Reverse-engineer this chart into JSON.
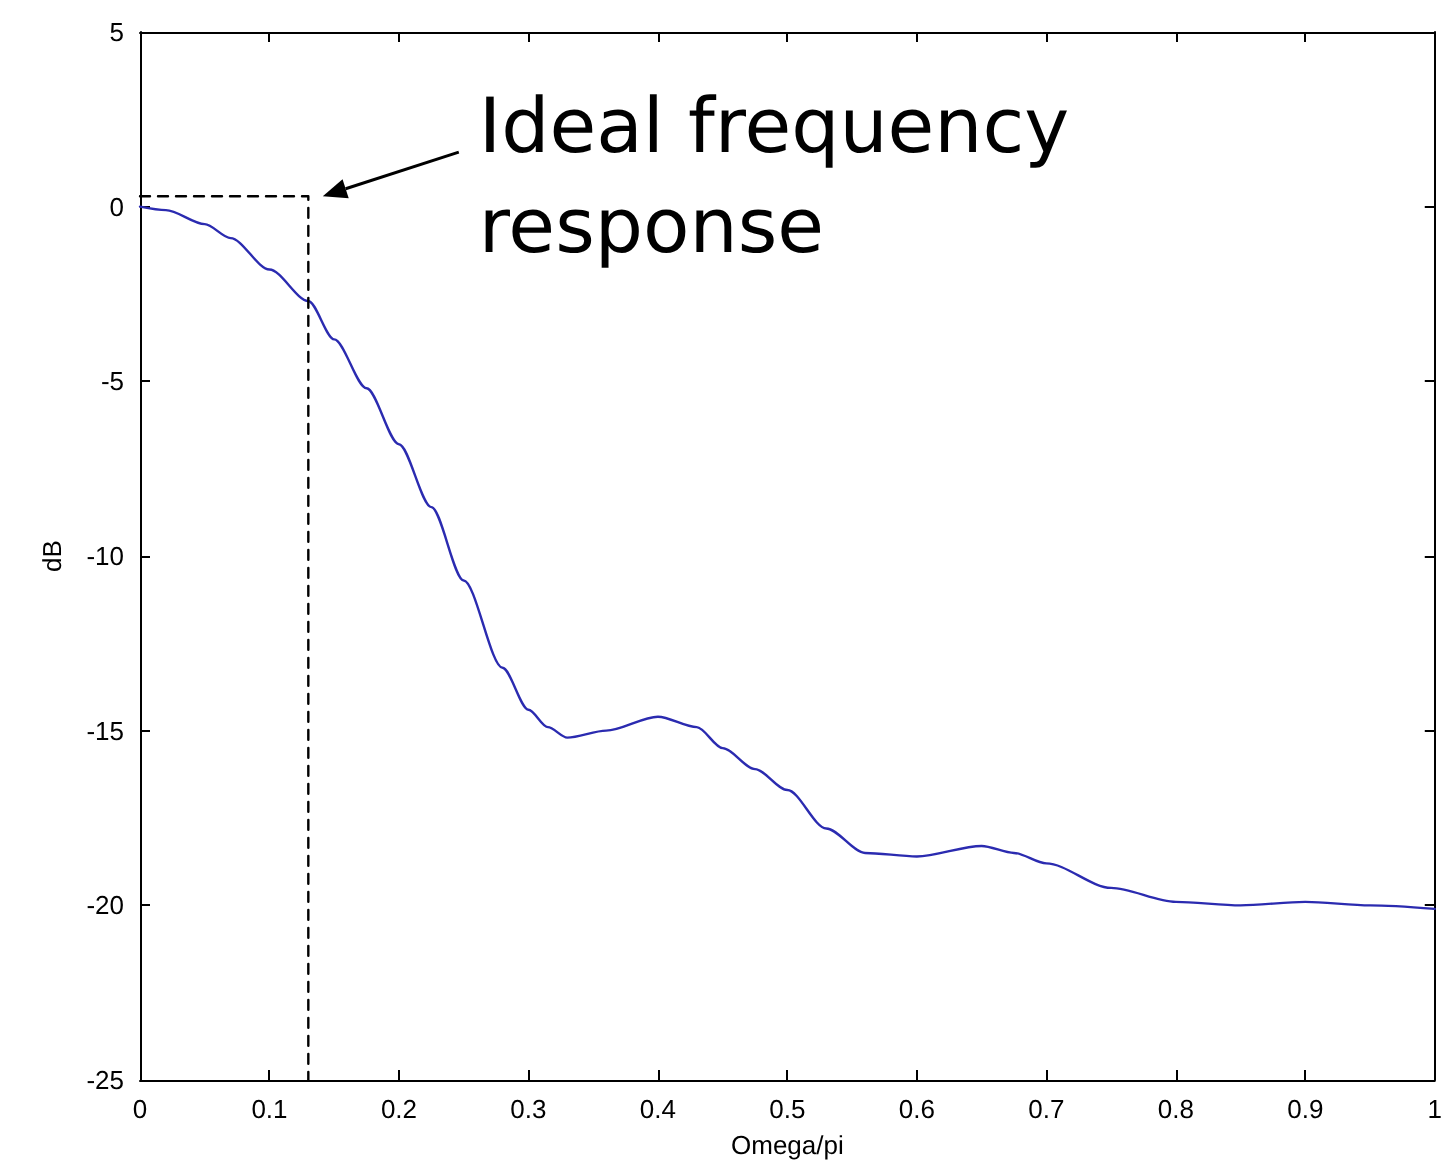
{
  "chart_data": {
    "type": "line",
    "xlabel": "Omega/pi",
    "ylabel": "dB",
    "xlim": [
      0,
      1
    ],
    "xticks": [
      0,
      0.1,
      0.2,
      0.3,
      0.4,
      0.5,
      0.6,
      0.7,
      0.8,
      0.9,
      1
    ],
    "ylim": [
      -25,
      5
    ],
    "yticks": [
      -25,
      -20,
      -15,
      -10,
      -5,
      0,
      5
    ],
    "grid": false,
    "marker": "none",
    "annotations": [
      {
        "text": "Ideal frequency response",
        "x": 0.135,
        "y": 0.3
      }
    ],
    "series": [
      {
        "color": "#2b2bb0",
        "line_style": "solid",
        "x": [
          0,
          0.02,
          0.05,
          0.07,
          0.1,
          0.13,
          0.15,
          0.175,
          0.2,
          0.225,
          0.25,
          0.28,
          0.3,
          0.315,
          0.33,
          0.36,
          0.4,
          0.43,
          0.45,
          0.475,
          0.5,
          0.53,
          0.56,
          0.6,
          0.65,
          0.675,
          0.7,
          0.75,
          0.8,
          0.85,
          0.9,
          0.95,
          1
        ],
        "values": [
          0,
          -0.1,
          -0.5,
          -0.9,
          -1.8,
          -2.7,
          -3.8,
          -5.2,
          -6.8,
          -8.6,
          -10.7,
          -13.2,
          -14.4,
          -14.9,
          -15.2,
          -15.0,
          -14.6,
          -14.9,
          -15.5,
          -16.1,
          -16.7,
          -17.8,
          -18.5,
          -18.6,
          -18.3,
          -18.5,
          -18.8,
          -19.5,
          -19.9,
          -20.0,
          -19.9,
          -20.0,
          -20.1
        ]
      },
      {
        "type": "line",
        "color": "#000000",
        "line_style": "dashed",
        "x": [
          0,
          0.13,
          0.13
        ],
        "values": [
          0.3,
          0.3,
          -25
        ]
      }
    ]
  }
}
